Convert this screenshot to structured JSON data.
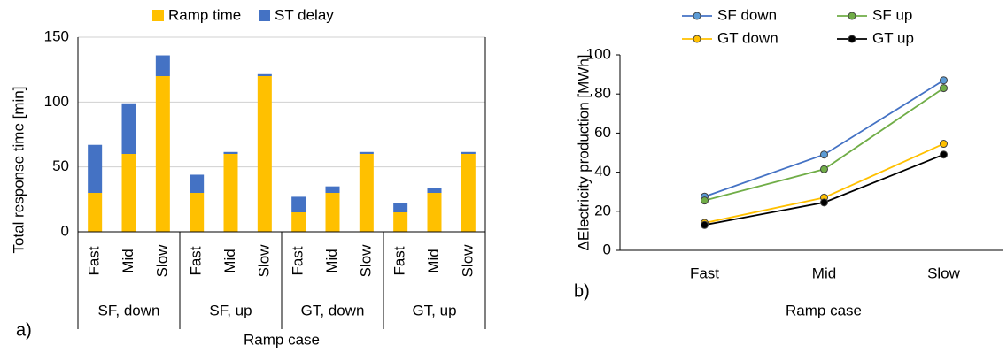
{
  "chart_data": [
    {
      "type": "stacked-bar",
      "panel_label": "a)",
      "categories": [
        "Fast",
        "Mid",
        "Slow",
        "Fast",
        "Mid",
        "Slow",
        "Fast",
        "Mid",
        "Slow",
        "Fast",
        "Mid",
        "Slow"
      ],
      "groups": [
        "SF, down",
        "SF, up",
        "GT, down",
        "GT, up"
      ],
      "series": [
        {
          "name": "Ramp time",
          "color": "#ffc000",
          "values": [
            30,
            60,
            120,
            30,
            60,
            120,
            15,
            30,
            60,
            15,
            30,
            60
          ]
        },
        {
          "name": "ST delay",
          "color": "#4472c4",
          "values": [
            37,
            39,
            16,
            14,
            1.5,
            1.5,
            12,
            5,
            1.5,
            7,
            4,
            1.5
          ]
        }
      ],
      "ylim": [
        0,
        150
      ],
      "yticks": [
        0,
        50,
        100,
        150
      ],
      "y_label": "Total response time [min]",
      "x_label": "Ramp case",
      "grid": true
    },
    {
      "type": "line",
      "panel_label": "b)",
      "categories": [
        "Fast",
        "Mid",
        "Slow"
      ],
      "series": [
        {
          "name": "SF down",
          "color": "#4472c4",
          "marker_color": "#5b9bd5",
          "values": [
            27.5,
            49,
            87
          ]
        },
        {
          "name": "SF up",
          "color": "#70ad47",
          "marker_color": "#70ad47",
          "values": [
            25.5,
            41.5,
            83
          ]
        },
        {
          "name": "GT down",
          "color": "#ffc000",
          "marker_color": "#ffc000",
          "values": [
            14,
            27,
            54.5
          ]
        },
        {
          "name": "GT up",
          "color": "#000000",
          "marker_color": "#000000",
          "values": [
            13,
            24.5,
            49
          ]
        }
      ],
      "ylim": [
        0,
        100
      ],
      "yticks": [
        0,
        20,
        40,
        60,
        80,
        100
      ],
      "y_label": "ΔElectricity production [MWh]",
      "x_label": "Ramp case",
      "grid": false
    }
  ]
}
